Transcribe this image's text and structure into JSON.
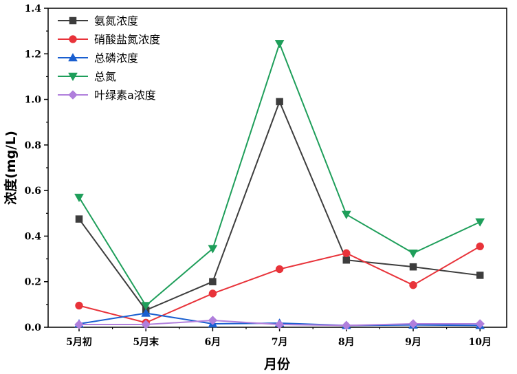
{
  "chart_data": {
    "type": "line",
    "xlabel": "月份",
    "ylabel": "浓度(mg/L)",
    "categories": [
      "5月初",
      "5月末",
      "6月",
      "7月",
      "8月",
      "9月",
      "10月"
    ],
    "ylim": [
      0,
      1.4
    ],
    "yticks": [
      "0.0",
      "0.2",
      "0.4",
      "0.6",
      "0.8",
      "1.0",
      "1.2",
      "1.4"
    ],
    "grid": false,
    "legend_position": "top-left",
    "series": [
      {
        "name": "氨氮浓度",
        "color": "#3d3d3d",
        "marker": "square",
        "values": [
          0.475,
          0.075,
          0.2,
          0.99,
          0.295,
          0.265,
          0.228
        ]
      },
      {
        "name": "硝酸盐氮浓度",
        "color": "#e8333a",
        "marker": "circle",
        "values": [
          0.095,
          0.02,
          0.148,
          0.255,
          0.325,
          0.185,
          0.355
        ]
      },
      {
        "name": "总磷浓度",
        "color": "#1a5fd0",
        "marker": "triangle-up",
        "values": [
          0.015,
          0.062,
          0.015,
          0.018,
          0.008,
          0.01,
          0.008
        ]
      },
      {
        "name": "总氮",
        "color": "#1e9e5a",
        "marker": "triangle-down",
        "values": [
          0.57,
          0.095,
          0.345,
          1.245,
          0.495,
          0.325,
          0.462
        ]
      },
      {
        "name": "叶绿素a浓度",
        "color": "#b07fdc",
        "marker": "diamond",
        "values": [
          0.012,
          0.012,
          0.03,
          0.012,
          0.008,
          0.015,
          0.015
        ]
      }
    ]
  }
}
